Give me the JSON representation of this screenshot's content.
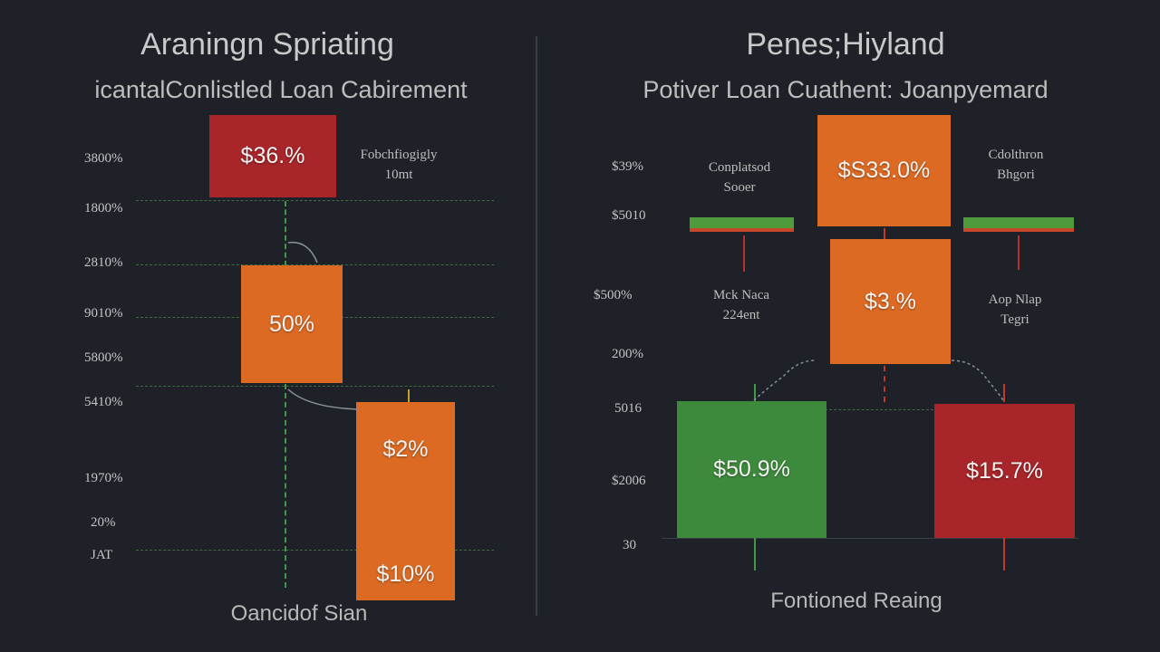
{
  "colors": {
    "background": "#1e2128",
    "red": "#a8262a",
    "orange": "#dc6a23",
    "green": "#3e8a3c",
    "grid": "#3d6b42"
  },
  "chart_data": [
    {
      "type": "bar",
      "title": "Araningn Spriating",
      "subtitle": "icantalConlistled Loan Cabirement",
      "footer": "Oancidof Sian",
      "yticks": [
        "3800%",
        "1800%",
        "2810%",
        "9010%",
        "5800%",
        "5410%",
        "1970%",
        "20%",
        "JAT"
      ],
      "annotations": [
        "Fobchfiogigly",
        "10mt"
      ],
      "bars": [
        {
          "label": "$36.%",
          "color": "red"
        },
        {
          "label": "50%",
          "color": "orange"
        },
        {
          "label": "$2%",
          "color": "orange"
        },
        {
          "label": "$10%",
          "color": "orange"
        }
      ]
    },
    {
      "type": "bar",
      "title": "Penes;Hiyland",
      "subtitle": "Potiver Loan Cuathent: Joanpyemard",
      "footer": "Fontioned Reaing",
      "yticks": [
        "$39%",
        "$5010",
        "$500%",
        "200%",
        "5016",
        "$2006",
        "30"
      ],
      "annotations": [
        [
          "Conplatsod",
          "Sooer"
        ],
        [
          "Cdolthron",
          "Bhgori"
        ],
        [
          "Mck Naca",
          "224ent"
        ],
        [
          "Aop Nlap",
          "Tegri"
        ]
      ],
      "bars": [
        {
          "label": "$S33.0%",
          "color": "orange"
        },
        {
          "label": "$3.%",
          "color": "orange"
        },
        {
          "label": "$50.9%",
          "color": "green"
        },
        {
          "label": "$15.7%",
          "color": "red"
        }
      ]
    }
  ]
}
